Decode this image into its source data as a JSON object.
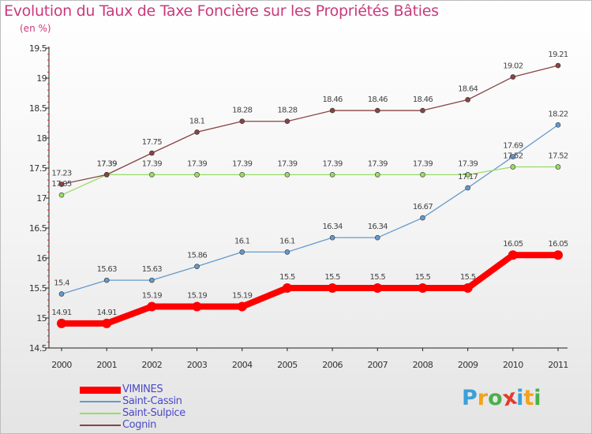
{
  "title": "Evolution du Taux de Taxe Foncière sur les Propriétés Bâties",
  "subtitle": "(en %)",
  "logo": {
    "letters": [
      "P",
      "r",
      "o",
      "x",
      "i",
      "t",
      "i"
    ],
    "colors": [
      "#3aa0d8",
      "#f4a21c",
      "#4bb04a",
      "#e43b2e",
      "#3aa0d8",
      "#f4a21c",
      "#4bb04a"
    ]
  },
  "chart_data": {
    "type": "line",
    "x": [
      "2000",
      "2001",
      "2002",
      "2003",
      "2004",
      "2005",
      "2006",
      "2007",
      "2008",
      "2009",
      "2010",
      "2011"
    ],
    "ylim": [
      14.5,
      19.5
    ],
    "yticks": [
      "14.5",
      "15",
      "15.5",
      "16",
      "16.5",
      "17",
      "17.5",
      "18",
      "18.5",
      "19",
      "19.5"
    ],
    "grid": false,
    "legend_position": "bottom-left",
    "series": [
      {
        "name": "VIMINES",
        "color": "#ff0000",
        "width": 8,
        "marker": 6,
        "values": [
          14.91,
          14.91,
          15.19,
          15.19,
          15.19,
          15.5,
          15.5,
          15.5,
          15.5,
          15.5,
          16.05,
          16.05
        ],
        "labels": [
          "14.91",
          "14.91",
          "15.19",
          "15.19",
          "15.19",
          "15.5",
          "15.5",
          "15.5",
          "15.5",
          "15.5",
          "16.05",
          "16.05"
        ]
      },
      {
        "name": "Saint-Cassin",
        "color": "#6699cc",
        "width": 1.3,
        "marker": 3,
        "values": [
          15.4,
          15.63,
          15.63,
          15.86,
          16.1,
          16.1,
          16.34,
          16.34,
          16.67,
          17.17,
          17.69,
          18.22
        ],
        "labels": [
          "15.4",
          "15.63",
          "15.63",
          "15.86",
          "16.1",
          "16.1",
          "16.34",
          "16.34",
          "16.67",
          "17.17",
          "17.69",
          "18.22"
        ]
      },
      {
        "name": "Saint-Sulpice",
        "color": "#99dd66",
        "width": 1.3,
        "marker": 3,
        "values": [
          17.05,
          17.39,
          17.39,
          17.39,
          17.39,
          17.39,
          17.39,
          17.39,
          17.39,
          17.39,
          17.52,
          17.52
        ],
        "labels": [
          "17.05",
          "17.39",
          "17.39",
          "17.39",
          "17.39",
          "17.39",
          "17.39",
          "17.39",
          "17.39",
          "17.39",
          "17.52",
          "17.52"
        ]
      },
      {
        "name": "Cognin",
        "color": "#884444",
        "width": 1.3,
        "marker": 3,
        "values": [
          17.23,
          17.39,
          17.75,
          18.1,
          18.28,
          18.28,
          18.46,
          18.46,
          18.46,
          18.64,
          19.02,
          19.21
        ],
        "labels": [
          "17.23",
          "17.39",
          "17.75",
          "18.1",
          "18.28",
          "18.28",
          "18.46",
          "18.46",
          "18.46",
          "18.64",
          "19.02",
          "19.21"
        ]
      }
    ]
  }
}
